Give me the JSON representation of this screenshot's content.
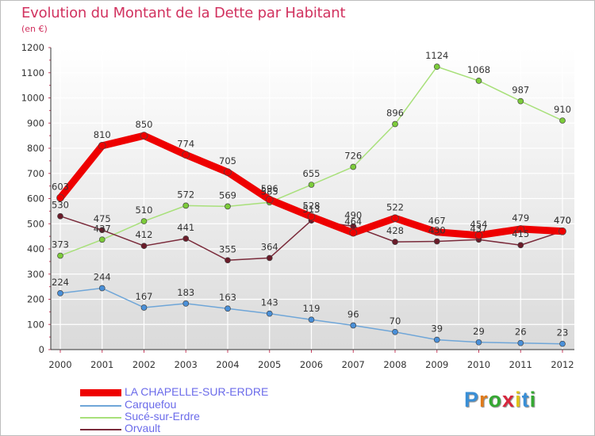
{
  "title": "Evolution du Montant de la Dette par Habitant",
  "subtitle": "(en €)",
  "logo": {
    "text": "Proxiti",
    "letter_colors": [
      "#3a8fd6",
      "#e07b1a",
      "#35a832",
      "#d7263d",
      "#e0c31a",
      "#3a8fd6",
      "#35a832"
    ]
  },
  "chart_data": {
    "type": "line",
    "title": "Evolution du Montant de la Dette par Habitant",
    "subtitle": "(en €)",
    "x": [
      "2000",
      "2001",
      "2002",
      "2003",
      "2004",
      "2005",
      "2006",
      "2007",
      "2008",
      "2009",
      "2010",
      "2011",
      "2012"
    ],
    "yticks": [
      "0",
      "100",
      "200",
      "300",
      "400",
      "500",
      "600",
      "700",
      "800",
      "900",
      "1000",
      "1100",
      "1200"
    ],
    "ylim": [
      0,
      1200
    ],
    "grid": true,
    "legend_position": "bottom-left",
    "series": [
      {
        "name": "LA CHAPELLE-SUR-ERDRE",
        "color": "#ee0000",
        "dot_color": "#ee0000",
        "emphasis": true,
        "values": [
          603,
          810,
          850,
          774,
          705,
          596,
          528,
          464,
          522,
          467,
          454,
          479,
          470
        ]
      },
      {
        "name": "Carquefou",
        "color": "#6fa6d8",
        "dot_color": "#4a90d9",
        "emphasis": false,
        "values": [
          224,
          244,
          167,
          183,
          163,
          143,
          119,
          96,
          70,
          39,
          29,
          26,
          23
        ]
      },
      {
        "name": "Sucé-sur-Erdre",
        "color": "#a8e07a",
        "dot_color": "#7ccc3a",
        "emphasis": false,
        "values": [
          373,
          437,
          510,
          572,
          569,
          585,
          655,
          726,
          896,
          1124,
          1068,
          987,
          910
        ]
      },
      {
        "name": "Orvault",
        "color": "#7a2a3a",
        "dot_color": "#6b1c2a",
        "emphasis": false,
        "values": [
          530,
          475,
          412,
          441,
          355,
          364,
          513,
          490,
          428,
          430,
          437,
          415,
          470
        ]
      }
    ]
  }
}
